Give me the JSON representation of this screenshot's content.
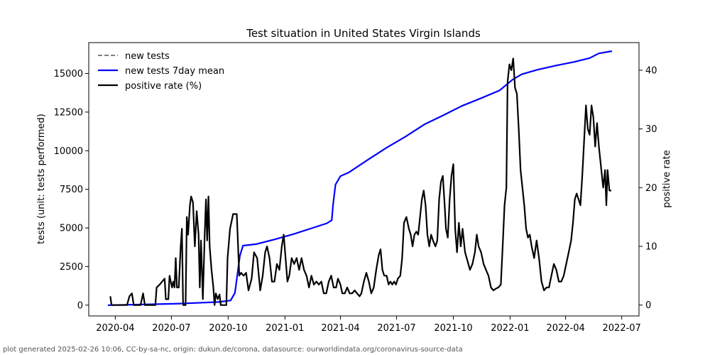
{
  "chart_data": {
    "type": "line",
    "title": "Test situation in United States Virgin Islands",
    "ylabel": "tests (unit: tests performed)",
    "y2label": "positive rate",
    "ylim": [
      -700,
      17000
    ],
    "y2lim": [
      -1.85,
      44.7
    ],
    "xlim": [
      "2020-02-18",
      "2022-07-29"
    ],
    "yticks": [
      0,
      2500,
      5000,
      7500,
      10000,
      12500,
      15000
    ],
    "y2ticks": [
      0,
      10,
      20,
      30,
      40
    ],
    "xticks": [
      {
        "date": "2020-04-01",
        "label": "2020-04"
      },
      {
        "date": "2020-07-01",
        "label": "2020-07"
      },
      {
        "date": "2020-10-01",
        "label": "2020-10"
      },
      {
        "date": "2021-01-01",
        "label": "2021-01"
      },
      {
        "date": "2021-04-01",
        "label": "2021-04"
      },
      {
        "date": "2021-07-01",
        "label": "2021-07"
      },
      {
        "date": "2021-10-01",
        "label": "2021-10"
      },
      {
        "date": "2022-01-01",
        "label": "2022-01"
      },
      {
        "date": "2022-04-01",
        "label": "2022-04"
      },
      {
        "date": "2022-07-01",
        "label": "2022-07"
      }
    ],
    "legend_position": "top-left",
    "series": [
      {
        "name": "new tests",
        "axis": "left",
        "color": "#808080",
        "style": "dashed",
        "points": []
      },
      {
        "name": "new tests 7day mean",
        "axis": "left",
        "color": "#0000ff",
        "style": "solid",
        "points": [
          [
            "2020-03-20",
            0
          ],
          [
            "2020-05-15",
            40
          ],
          [
            "2020-07-15",
            100
          ],
          [
            "2020-09-15",
            200
          ],
          [
            "2020-10-05",
            300
          ],
          [
            "2020-10-12",
            800
          ],
          [
            "2020-10-20",
            3200
          ],
          [
            "2020-10-25",
            3850
          ],
          [
            "2020-11-15",
            3950
          ],
          [
            "2020-12-15",
            4250
          ],
          [
            "2021-01-15",
            4600
          ],
          [
            "2021-02-15",
            5000
          ],
          [
            "2021-03-10",
            5300
          ],
          [
            "2021-03-18",
            5500
          ],
          [
            "2021-03-20",
            6500
          ],
          [
            "2021-03-24",
            7800
          ],
          [
            "2021-04-01",
            8350
          ],
          [
            "2021-04-15",
            8600
          ],
          [
            "2021-05-15",
            9400
          ],
          [
            "2021-06-15",
            10200
          ],
          [
            "2021-07-15",
            10900
          ],
          [
            "2021-08-15",
            11700
          ],
          [
            "2021-09-15",
            12300
          ],
          [
            "2021-10-15",
            12900
          ],
          [
            "2021-11-15",
            13400
          ],
          [
            "2021-12-15",
            13900
          ],
          [
            "2022-01-05",
            14600
          ],
          [
            "2022-01-20",
            14950
          ],
          [
            "2022-02-15",
            15250
          ],
          [
            "2022-03-15",
            15500
          ],
          [
            "2022-04-15",
            15750
          ],
          [
            "2022-05-10",
            16000
          ],
          [
            "2022-05-25",
            16300
          ],
          [
            "2022-06-15",
            16450
          ]
        ]
      },
      {
        "name": "positive rate (%)",
        "axis": "right",
        "color": "#000000",
        "style": "solid",
        "points": [
          [
            "2020-03-24",
            1.5
          ],
          [
            "2020-03-26",
            0
          ],
          [
            "2020-04-20",
            0
          ],
          [
            "2020-04-24",
            1.5
          ],
          [
            "2020-04-28",
            2
          ],
          [
            "2020-05-01",
            0
          ],
          [
            "2020-05-12",
            0
          ],
          [
            "2020-05-16",
            2
          ],
          [
            "2020-05-19",
            0
          ],
          [
            "2020-06-05",
            0
          ],
          [
            "2020-06-07",
            3
          ],
          [
            "2020-06-12",
            3.5
          ],
          [
            "2020-06-16",
            4
          ],
          [
            "2020-06-20",
            4.5
          ],
          [
            "2020-06-22",
            1
          ],
          [
            "2020-06-26",
            1
          ],
          [
            "2020-06-28",
            5
          ],
          [
            "2020-07-02",
            3
          ],
          [
            "2020-07-04",
            4
          ],
          [
            "2020-07-06",
            3
          ],
          [
            "2020-07-08",
            8
          ],
          [
            "2020-07-10",
            3
          ],
          [
            "2020-07-13",
            3
          ],
          [
            "2020-07-16",
            10
          ],
          [
            "2020-07-18",
            13
          ],
          [
            "2020-07-20",
            0
          ],
          [
            "2020-07-24",
            0
          ],
          [
            "2020-07-26",
            15
          ],
          [
            "2020-07-28",
            12
          ],
          [
            "2020-07-31",
            17
          ],
          [
            "2020-08-02",
            18.5
          ],
          [
            "2020-08-05",
            17.5
          ],
          [
            "2020-08-08",
            10
          ],
          [
            "2020-08-11",
            16
          ],
          [
            "2020-08-14",
            12
          ],
          [
            "2020-08-16",
            3
          ],
          [
            "2020-08-18",
            11
          ],
          [
            "2020-08-21",
            1
          ],
          [
            "2020-08-24",
            12
          ],
          [
            "2020-08-26",
            18
          ],
          [
            "2020-08-28",
            11
          ],
          [
            "2020-08-30",
            18.5
          ],
          [
            "2020-09-01",
            10
          ],
          [
            "2020-09-04",
            6
          ],
          [
            "2020-09-07",
            3
          ],
          [
            "2020-09-09",
            0
          ],
          [
            "2020-09-11",
            2
          ],
          [
            "2020-09-14",
            1
          ],
          [
            "2020-09-17",
            1.8
          ],
          [
            "2020-09-19",
            0
          ],
          [
            "2020-09-28",
            0
          ],
          [
            "2020-09-30",
            8
          ],
          [
            "2020-10-04",
            13
          ],
          [
            "2020-10-09",
            15.5
          ],
          [
            "2020-10-15",
            15.5
          ],
          [
            "2020-10-19",
            5
          ],
          [
            "2020-10-22",
            5.5
          ],
          [
            "2020-10-26",
            5
          ],
          [
            "2020-10-30",
            5.5
          ],
          [
            "2020-11-03",
            2.5
          ],
          [
            "2020-11-08",
            4.5
          ],
          [
            "2020-11-12",
            9
          ],
          [
            "2020-11-17",
            8
          ],
          [
            "2020-11-22",
            2.5
          ],
          [
            "2020-11-26",
            5
          ],
          [
            "2020-11-30",
            9
          ],
          [
            "2020-12-03",
            10
          ],
          [
            "2020-12-07",
            8
          ],
          [
            "2020-12-11",
            4
          ],
          [
            "2020-12-15",
            4
          ],
          [
            "2020-12-19",
            7
          ],
          [
            "2020-12-23",
            6
          ],
          [
            "2020-12-27",
            10
          ],
          [
            "2020-12-30",
            12
          ],
          [
            "2021-01-02",
            8
          ],
          [
            "2021-01-05",
            4
          ],
          [
            "2021-01-08",
            5
          ],
          [
            "2021-01-12",
            8
          ],
          [
            "2021-01-16",
            7
          ],
          [
            "2021-01-20",
            8
          ],
          [
            "2021-01-24",
            6
          ],
          [
            "2021-01-28",
            8
          ],
          [
            "2021-02-01",
            6
          ],
          [
            "2021-02-05",
            5
          ],
          [
            "2021-02-09",
            3
          ],
          [
            "2021-02-13",
            5
          ],
          [
            "2021-02-17",
            3.5
          ],
          [
            "2021-02-21",
            4
          ],
          [
            "2021-02-25",
            3.5
          ],
          [
            "2021-03-01",
            4
          ],
          [
            "2021-03-05",
            2
          ],
          [
            "2021-03-09",
            2
          ],
          [
            "2021-03-13",
            4
          ],
          [
            "2021-03-17",
            5
          ],
          [
            "2021-03-21",
            3
          ],
          [
            "2021-03-25",
            3
          ],
          [
            "2021-03-28",
            4.5
          ],
          [
            "2021-04-01",
            3.5
          ],
          [
            "2021-04-04",
            2
          ],
          [
            "2021-04-08",
            2
          ],
          [
            "2021-04-12",
            3
          ],
          [
            "2021-04-16",
            2
          ],
          [
            "2021-04-20",
            2
          ],
          [
            "2021-04-24",
            2.5
          ],
          [
            "2021-04-28",
            2
          ],
          [
            "2021-05-02",
            1.5
          ],
          [
            "2021-05-05",
            2
          ],
          [
            "2021-05-09",
            4
          ],
          [
            "2021-05-13",
            5.5
          ],
          [
            "2021-05-17",
            4
          ],
          [
            "2021-05-21",
            2
          ],
          [
            "2021-05-25",
            3
          ],
          [
            "2021-05-29",
            6
          ],
          [
            "2021-06-02",
            8.5
          ],
          [
            "2021-06-05",
            9.5
          ],
          [
            "2021-06-08",
            6
          ],
          [
            "2021-06-11",
            5
          ],
          [
            "2021-06-15",
            5
          ],
          [
            "2021-06-18",
            3.5
          ],
          [
            "2021-06-21",
            4
          ],
          [
            "2021-06-24",
            3.5
          ],
          [
            "2021-06-27",
            4
          ],
          [
            "2021-06-30",
            3.5
          ],
          [
            "2021-07-03",
            4.5
          ],
          [
            "2021-07-07",
            5
          ],
          [
            "2021-07-10",
            8
          ],
          [
            "2021-07-13",
            14
          ],
          [
            "2021-07-17",
            15
          ],
          [
            "2021-07-21",
            13
          ],
          [
            "2021-07-24",
            12
          ],
          [
            "2021-07-27",
            10
          ],
          [
            "2021-07-30",
            12
          ],
          [
            "2021-08-02",
            12.5
          ],
          [
            "2021-08-05",
            12
          ],
          [
            "2021-08-08",
            15
          ],
          [
            "2021-08-11",
            18
          ],
          [
            "2021-08-14",
            19.5
          ],
          [
            "2021-08-17",
            17
          ],
          [
            "2021-08-20",
            12
          ],
          [
            "2021-08-23",
            10
          ],
          [
            "2021-08-26",
            12
          ],
          [
            "2021-08-29",
            11
          ],
          [
            "2021-09-02",
            10
          ],
          [
            "2021-09-05",
            11
          ],
          [
            "2021-09-08",
            18
          ],
          [
            "2021-09-11",
            21
          ],
          [
            "2021-09-14",
            22
          ],
          [
            "2021-09-17",
            17
          ],
          [
            "2021-09-19",
            13
          ],
          [
            "2021-09-22",
            11.5
          ],
          [
            "2021-09-25",
            18
          ],
          [
            "2021-09-28",
            22
          ],
          [
            "2021-10-01",
            24
          ],
          [
            "2021-10-04",
            13
          ],
          [
            "2021-10-07",
            9
          ],
          [
            "2021-10-10",
            14
          ],
          [
            "2021-10-13",
            10
          ],
          [
            "2021-10-16",
            13
          ],
          [
            "2021-10-20",
            9
          ],
          [
            "2021-10-24",
            7.5
          ],
          [
            "2021-10-28",
            6
          ],
          [
            "2021-11-01",
            7
          ],
          [
            "2021-11-05",
            9
          ],
          [
            "2021-11-08",
            12
          ],
          [
            "2021-11-11",
            10
          ],
          [
            "2021-11-15",
            9
          ],
          [
            "2021-11-19",
            7
          ],
          [
            "2021-11-23",
            6
          ],
          [
            "2021-11-27",
            5
          ],
          [
            "2021-12-01",
            3
          ],
          [
            "2021-12-05",
            2.5
          ],
          [
            "2021-12-09",
            2.8
          ],
          [
            "2021-12-13",
            3
          ],
          [
            "2021-12-17",
            3.5
          ],
          [
            "2021-12-20",
            10
          ],
          [
            "2021-12-23",
            17
          ],
          [
            "2021-12-26",
            20
          ],
          [
            "2021-12-28",
            38
          ],
          [
            "2021-12-31",
            41
          ],
          [
            "2022-01-03",
            40
          ],
          [
            "2022-01-06",
            42
          ],
          [
            "2022-01-09",
            37
          ],
          [
            "2022-01-12",
            36
          ],
          [
            "2022-01-15",
            30
          ],
          [
            "2022-01-18",
            23
          ],
          [
            "2022-01-21",
            20
          ],
          [
            "2022-01-24",
            17
          ],
          [
            "2022-01-27",
            13
          ],
          [
            "2022-01-30",
            11.5
          ],
          [
            "2022-02-02",
            12
          ],
          [
            "2022-02-05",
            10
          ],
          [
            "2022-02-09",
            8
          ],
          [
            "2022-02-13",
            11
          ],
          [
            "2022-02-17",
            8
          ],
          [
            "2022-02-21",
            4
          ],
          [
            "2022-02-25",
            2.5
          ],
          [
            "2022-03-01",
            3
          ],
          [
            "2022-03-05",
            3
          ],
          [
            "2022-03-09",
            5
          ],
          [
            "2022-03-13",
            7
          ],
          [
            "2022-03-17",
            6
          ],
          [
            "2022-03-21",
            4
          ],
          [
            "2022-03-25",
            4
          ],
          [
            "2022-03-29",
            5
          ],
          [
            "2022-04-02",
            7
          ],
          [
            "2022-04-06",
            9
          ],
          [
            "2022-04-10",
            11
          ],
          [
            "2022-04-13",
            14
          ],
          [
            "2022-04-16",
            18
          ],
          [
            "2022-04-19",
            19
          ],
          [
            "2022-04-22",
            18
          ],
          [
            "2022-04-25",
            17
          ],
          [
            "2022-04-28",
            22
          ],
          [
            "2022-05-01",
            28
          ],
          [
            "2022-05-04",
            34
          ],
          [
            "2022-05-07",
            30
          ],
          [
            "2022-05-10",
            29
          ],
          [
            "2022-05-13",
            34
          ],
          [
            "2022-05-16",
            32
          ],
          [
            "2022-05-19",
            27
          ],
          [
            "2022-05-22",
            31
          ],
          [
            "2022-05-25",
            27
          ],
          [
            "2022-05-28",
            24
          ],
          [
            "2022-06-01",
            20
          ],
          [
            "2022-06-04",
            23
          ],
          [
            "2022-06-06",
            17
          ],
          [
            "2022-06-08",
            23
          ],
          [
            "2022-06-11",
            19.5
          ],
          [
            "2022-06-14",
            19.5
          ]
        ]
      }
    ]
  },
  "footer": "plot generated 2025-02-26 10:06, CC-by-sa-nc, origin: dukun.de/corona, datasource: ourworldindata.org/coronavirus-source-data"
}
